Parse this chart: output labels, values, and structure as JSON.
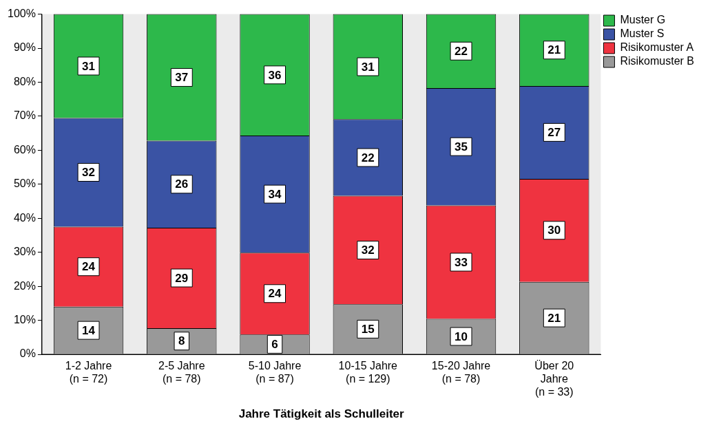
{
  "chart_data": {
    "type": "bar",
    "stacked": true,
    "xlabel": "Jahre Tätigkeit als Schulleiter",
    "categories": [
      "1-2 Jahre\n(n = 72)",
      "2-5 Jahre\n(n = 78)",
      "5-10 Jahre\n(n = 87)",
      "10-15 Jahre\n(n = 129)",
      "15-20 Jahre\n(n = 78)",
      "Über 20\nJahre\n(n = 33)"
    ],
    "series": [
      {
        "name": "Risikomuster B",
        "color": "#999999",
        "values": [
          14,
          7.7,
          5.8,
          14.7,
          10.4,
          21.3
        ],
        "value_labels": [
          "14",
          "8",
          "6",
          "15",
          "10",
          "21"
        ]
      },
      {
        "name": "Risikomuster A",
        "color": "#ef3340",
        "values": [
          23.5,
          29.5,
          24.1,
          31.9,
          33.4,
          30.3
        ],
        "value_labels": [
          "24",
          "29",
          "24",
          "32",
          "33",
          "30"
        ]
      },
      {
        "name": "Muster S",
        "color": "#3a53a4",
        "values": [
          32,
          25.6,
          34.4,
          22.5,
          34.5,
          27.3
        ],
        "value_labels": [
          "32",
          "26",
          "34",
          "22",
          "35",
          "27"
        ]
      },
      {
        "name": "Muster G",
        "color": "#2db84b",
        "values": [
          30.5,
          37.2,
          35.7,
          30.9,
          21.7,
          21.1
        ],
        "value_labels": [
          "31",
          "37",
          "36",
          "31",
          "22",
          "21"
        ]
      }
    ],
    "ylim": [
      0,
      100
    ],
    "yticks": [
      {
        "value": 0,
        "label": "0%"
      },
      {
        "value": 10,
        "label": "10%"
      },
      {
        "value": 20,
        "label": "20%"
      },
      {
        "value": 30,
        "label": "30%"
      },
      {
        "value": 40,
        "label": "40%"
      },
      {
        "value": 50,
        "label": "50%"
      },
      {
        "value": 60,
        "label": "60%"
      },
      {
        "value": 70,
        "label": "70%"
      },
      {
        "value": 80,
        "label": "80%"
      },
      {
        "value": 90,
        "label": "90%"
      },
      {
        "value": 100,
        "label": "100%"
      }
    ],
    "grid": false,
    "legend": "top right"
  }
}
